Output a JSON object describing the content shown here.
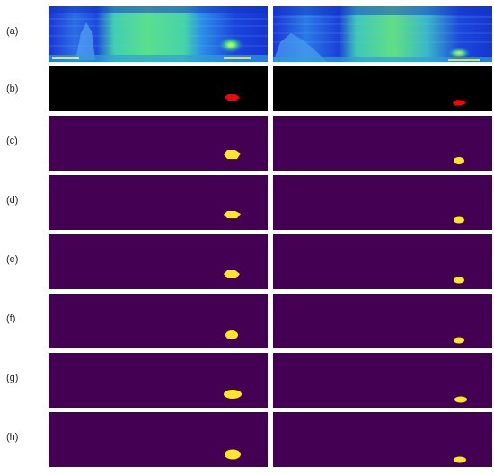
{
  "rows": [
    {
      "label": "(a)"
    },
    {
      "label": "(b)"
    },
    {
      "label": "(c)"
    },
    {
      "label": "(d)"
    },
    {
      "label": "(e)"
    },
    {
      "label": "(f)"
    },
    {
      "label": "(g)"
    },
    {
      "label": "(h)"
    }
  ],
  "colors": {
    "background_mask": "#000000",
    "target_red": "#ff0000",
    "segmentation_background": "#440154",
    "segmentation_target": "#fde725",
    "heatmap_low": "#1133cc",
    "heatmap_mid": "#33cc99",
    "heatmap_high": "#ffff33"
  }
}
